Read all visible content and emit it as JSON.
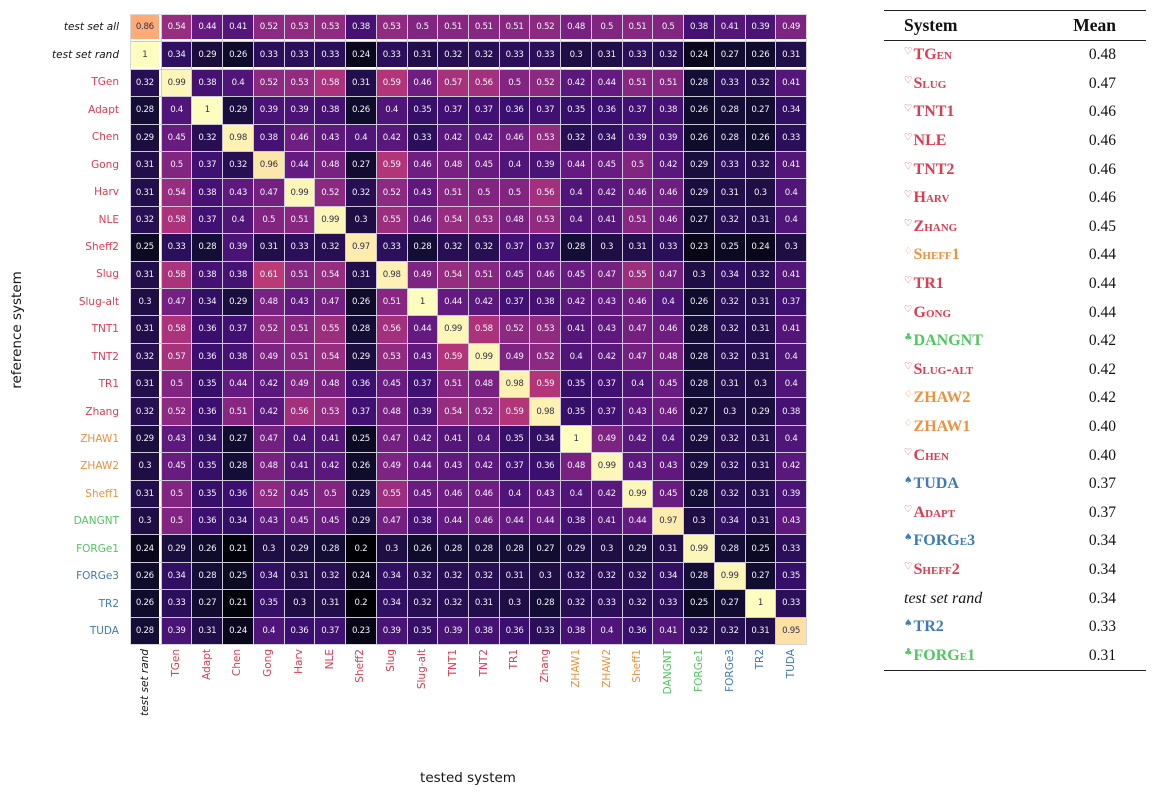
{
  "colors": {
    "red": "#e23a4e",
    "orange": "#f0903c",
    "green": "#4fc75f",
    "blue": "#3d7cb8",
    "black": "#141414"
  },
  "axes": {
    "x_title": "tested system",
    "y_title": "reference system"
  },
  "chart_data": {
    "type": "heatmap",
    "colormap": "magma",
    "value_range": [
      0.2,
      1.0
    ],
    "xlabel": "tested system",
    "ylabel": "reference system",
    "row_labels": [
      {
        "label": "test set all",
        "color": "black",
        "italic": true
      },
      {
        "label": "test set rand",
        "color": "black",
        "italic": true
      },
      {
        "label": "TGen",
        "color": "red"
      },
      {
        "label": "Adapt",
        "color": "red"
      },
      {
        "label": "Chen",
        "color": "red"
      },
      {
        "label": "Gong",
        "color": "red"
      },
      {
        "label": "Harv",
        "color": "red"
      },
      {
        "label": "NLE",
        "color": "red"
      },
      {
        "label": "Sheff2",
        "color": "red"
      },
      {
        "label": "Slug",
        "color": "red"
      },
      {
        "label": "Slug-alt",
        "color": "red"
      },
      {
        "label": "TNT1",
        "color": "red"
      },
      {
        "label": "TNT2",
        "color": "red"
      },
      {
        "label": "TR1",
        "color": "red"
      },
      {
        "label": "Zhang",
        "color": "red"
      },
      {
        "label": "ZHAW1",
        "color": "orange"
      },
      {
        "label": "ZHAW2",
        "color": "orange"
      },
      {
        "label": "Sheff1",
        "color": "orange"
      },
      {
        "label": "DANGNT",
        "color": "green"
      },
      {
        "label": "FORGe1",
        "color": "green"
      },
      {
        "label": "FORGe3",
        "color": "blue"
      },
      {
        "label": "TR2",
        "color": "blue"
      },
      {
        "label": "TUDA",
        "color": "blue"
      }
    ],
    "col_labels": [
      {
        "label": "test set rand",
        "color": "black",
        "italic": true
      },
      {
        "label": "TGen",
        "color": "red"
      },
      {
        "label": "Adapt",
        "color": "red"
      },
      {
        "label": "Chen",
        "color": "red"
      },
      {
        "label": "Gong",
        "color": "red"
      },
      {
        "label": "Harv",
        "color": "red"
      },
      {
        "label": "NLE",
        "color": "red"
      },
      {
        "label": "Sheff2",
        "color": "red"
      },
      {
        "label": "Slug",
        "color": "red"
      },
      {
        "label": "Slug-alt",
        "color": "red"
      },
      {
        "label": "TNT1",
        "color": "red"
      },
      {
        "label": "TNT2",
        "color": "red"
      },
      {
        "label": "TR1",
        "color": "red"
      },
      {
        "label": "Zhang",
        "color": "red"
      },
      {
        "label": "ZHAW1",
        "color": "orange"
      },
      {
        "label": "ZHAW2",
        "color": "orange"
      },
      {
        "label": "Sheff1",
        "color": "orange"
      },
      {
        "label": "DANGNT",
        "color": "green"
      },
      {
        "label": "FORGe1",
        "color": "green"
      },
      {
        "label": "FORGe3",
        "color": "blue"
      },
      {
        "label": "TR2",
        "color": "blue"
      },
      {
        "label": "TUDA",
        "color": "blue"
      }
    ],
    "matrix": [
      [
        0.86,
        0.54,
        0.44,
        0.41,
        0.52,
        0.53,
        0.53,
        0.38,
        0.53,
        0.5,
        0.51,
        0.51,
        0.51,
        0.52,
        0.48,
        0.5,
        0.51,
        0.5,
        0.38,
        0.41,
        0.39,
        0.49
      ],
      [
        1,
        0.34,
        0.29,
        0.26,
        0.33,
        0.33,
        0.33,
        0.24,
        0.33,
        0.31,
        0.32,
        0.32,
        0.33,
        0.33,
        0.3,
        0.31,
        0.33,
        0.32,
        0.24,
        0.27,
        0.26,
        0.31
      ],
      [
        0.32,
        0.99,
        0.38,
        0.4,
        0.52,
        0.53,
        0.58,
        0.31,
        0.59,
        0.46,
        0.57,
        0.56,
        0.5,
        0.52,
        0.42,
        0.44,
        0.51,
        0.51,
        0.28,
        0.33,
        0.32,
        0.41
      ],
      [
        0.28,
        0.4,
        1,
        0.29,
        0.39,
        0.39,
        0.38,
        0.26,
        0.4,
        0.35,
        0.37,
        0.37,
        0.36,
        0.37,
        0.35,
        0.36,
        0.37,
        0.38,
        0.26,
        0.28,
        0.27,
        0.34
      ],
      [
        0.29,
        0.45,
        0.32,
        0.98,
        0.38,
        0.46,
        0.43,
        0.4,
        0.42,
        0.33,
        0.42,
        0.42,
        0.46,
        0.53,
        0.32,
        0.34,
        0.39,
        0.39,
        0.26,
        0.28,
        0.26,
        0.33
      ],
      [
        0.31,
        0.5,
        0.37,
        0.32,
        0.96,
        0.44,
        0.48,
        0.27,
        0.59,
        0.46,
        0.48,
        0.45,
        0.4,
        0.39,
        0.44,
        0.45,
        0.5,
        0.42,
        0.29,
        0.33,
        0.32,
        0.41
      ],
      [
        0.31,
        0.54,
        0.38,
        0.43,
        0.47,
        0.99,
        0.52,
        0.32,
        0.52,
        0.43,
        0.51,
        0.5,
        0.5,
        0.56,
        0.4,
        0.42,
        0.46,
        0.46,
        0.29,
        0.31,
        0.3,
        0.4
      ],
      [
        0.32,
        0.58,
        0.37,
        0.4,
        0.5,
        0.51,
        0.99,
        0.3,
        0.55,
        0.46,
        0.54,
        0.53,
        0.48,
        0.53,
        0.4,
        0.41,
        0.51,
        0.46,
        0.27,
        0.32,
        0.31,
        0.4
      ],
      [
        0.25,
        0.33,
        0.28,
        0.39,
        0.31,
        0.33,
        0.32,
        0.97,
        0.33,
        0.28,
        0.32,
        0.32,
        0.37,
        0.37,
        0.28,
        0.3,
        0.31,
        0.33,
        0.23,
        0.25,
        0.24,
        0.3
      ],
      [
        0.31,
        0.58,
        0.38,
        0.38,
        0.61,
        0.51,
        0.54,
        0.31,
        0.98,
        0.49,
        0.54,
        0.51,
        0.45,
        0.46,
        0.45,
        0.47,
        0.55,
        0.47,
        0.3,
        0.34,
        0.32,
        0.41
      ],
      [
        0.3,
        0.47,
        0.34,
        0.29,
        0.48,
        0.43,
        0.47,
        0.26,
        0.51,
        1,
        0.44,
        0.42,
        0.37,
        0.38,
        0.42,
        0.43,
        0.46,
        0.4,
        0.26,
        0.32,
        0.31,
        0.37
      ],
      [
        0.31,
        0.58,
        0.36,
        0.37,
        0.52,
        0.51,
        0.55,
        0.28,
        0.56,
        0.44,
        0.99,
        0.58,
        0.52,
        0.53,
        0.41,
        0.43,
        0.47,
        0.46,
        0.28,
        0.32,
        0.31,
        0.41
      ],
      [
        0.32,
        0.57,
        0.36,
        0.38,
        0.49,
        0.51,
        0.54,
        0.29,
        0.53,
        0.43,
        0.59,
        0.99,
        0.49,
        0.52,
        0.4,
        0.42,
        0.47,
        0.48,
        0.28,
        0.32,
        0.31,
        0.4
      ],
      [
        0.31,
        0.5,
        0.35,
        0.44,
        0.42,
        0.49,
        0.48,
        0.36,
        0.45,
        0.37,
        0.51,
        0.48,
        0.98,
        0.59,
        0.35,
        0.37,
        0.4,
        0.45,
        0.28,
        0.31,
        0.3,
        0.4
      ],
      [
        0.32,
        0.52,
        0.36,
        0.51,
        0.42,
        0.56,
        0.53,
        0.37,
        0.48,
        0.39,
        0.54,
        0.52,
        0.59,
        0.98,
        0.35,
        0.37,
        0.43,
        0.46,
        0.27,
        0.3,
        0.29,
        0.38
      ],
      [
        0.29,
        0.43,
        0.34,
        0.27,
        0.47,
        0.4,
        0.41,
        0.25,
        0.47,
        0.42,
        0.41,
        0.4,
        0.35,
        0.34,
        1,
        0.49,
        0.42,
        0.4,
        0.29,
        0.32,
        0.31,
        0.4
      ],
      [
        0.3,
        0.45,
        0.35,
        0.28,
        0.48,
        0.41,
        0.42,
        0.26,
        0.49,
        0.44,
        0.43,
        0.42,
        0.37,
        0.36,
        0.48,
        0.99,
        0.43,
        0.43,
        0.29,
        0.32,
        0.31,
        0.42
      ],
      [
        0.31,
        0.5,
        0.35,
        0.36,
        0.52,
        0.45,
        0.5,
        0.29,
        0.55,
        0.45,
        0.46,
        0.46,
        0.4,
        0.43,
        0.4,
        0.42,
        0.99,
        0.45,
        0.28,
        0.32,
        0.31,
        0.39
      ],
      [
        0.3,
        0.5,
        0.36,
        0.34,
        0.43,
        0.45,
        0.45,
        0.29,
        0.47,
        0.38,
        0.44,
        0.46,
        0.44,
        0.44,
        0.38,
        0.41,
        0.44,
        0.97,
        0.3,
        0.34,
        0.31,
        0.43
      ],
      [
        0.24,
        0.29,
        0.26,
        0.21,
        0.3,
        0.29,
        0.28,
        0.2,
        0.3,
        0.26,
        0.28,
        0.28,
        0.28,
        0.27,
        0.29,
        0.3,
        0.29,
        0.31,
        0.99,
        0.28,
        0.25,
        0.33
      ],
      [
        0.26,
        0.34,
        0.28,
        0.25,
        0.34,
        0.31,
        0.32,
        0.24,
        0.34,
        0.32,
        0.32,
        0.32,
        0.31,
        0.3,
        0.32,
        0.32,
        0.32,
        0.34,
        0.28,
        0.99,
        0.27,
        0.35
      ],
      [
        0.26,
        0.33,
        0.27,
        0.21,
        0.35,
        0.3,
        0.31,
        0.2,
        0.34,
        0.32,
        0.32,
        0.31,
        0.3,
        0.28,
        0.32,
        0.33,
        0.32,
        0.33,
        0.25,
        0.27,
        1,
        0.33
      ],
      [
        0.28,
        0.39,
        0.31,
        0.24,
        0.4,
        0.36,
        0.37,
        0.23,
        0.39,
        0.35,
        0.39,
        0.38,
        0.36,
        0.33,
        0.38,
        0.4,
        0.36,
        0.41,
        0.32,
        0.32,
        0.31,
        0.95
      ]
    ]
  },
  "table": {
    "headers": {
      "system": "System",
      "mean": "Mean"
    },
    "rows": [
      {
        "suit": "heart",
        "name": "TGen",
        "color": "red",
        "mean": "0.48"
      },
      {
        "suit": "heart",
        "name": "Slug",
        "color": "red",
        "mean": "0.47"
      },
      {
        "suit": "heart",
        "name": "TNT1",
        "color": "red",
        "mean": "0.46"
      },
      {
        "suit": "heart",
        "name": "NLE",
        "color": "red",
        "mean": "0.46"
      },
      {
        "suit": "heart",
        "name": "TNT2",
        "color": "red",
        "mean": "0.46"
      },
      {
        "suit": "heart",
        "name": "Harv",
        "color": "red",
        "mean": "0.46"
      },
      {
        "suit": "heart",
        "name": "Zhang",
        "color": "red",
        "mean": "0.45"
      },
      {
        "suit": "diamond",
        "name": "Sheff1",
        "color": "orange",
        "mean": "0.44"
      },
      {
        "suit": "heart",
        "name": "TR1",
        "color": "red",
        "mean": "0.44"
      },
      {
        "suit": "heart",
        "name": "Gong",
        "color": "red",
        "mean": "0.44"
      },
      {
        "suit": "club",
        "name": "DANGNT",
        "color": "green",
        "mean": "0.42"
      },
      {
        "suit": "heart",
        "name": "Slug-alt",
        "color": "red",
        "mean": "0.42"
      },
      {
        "suit": "diamond",
        "name": "ZHAW2",
        "color": "orange",
        "mean": "0.42"
      },
      {
        "suit": "diamond",
        "name": "ZHAW1",
        "color": "orange",
        "mean": "0.40"
      },
      {
        "suit": "heart",
        "name": "Chen",
        "color": "red",
        "mean": "0.40"
      },
      {
        "suit": "spade",
        "name": "TUDA",
        "color": "blue",
        "mean": "0.37"
      },
      {
        "suit": "heart",
        "name": "Adapt",
        "color": "red",
        "mean": "0.37"
      },
      {
        "suit": "spade",
        "name": "FORGe3",
        "color": "blue",
        "mean": "0.34"
      },
      {
        "suit": "heart",
        "name": "Sheff2",
        "color": "red",
        "mean": "0.34"
      },
      {
        "suit": "",
        "name": "test set rand",
        "color": "black",
        "italic": true,
        "mean": "0.34"
      },
      {
        "suit": "spade",
        "name": "TR2",
        "color": "blue",
        "mean": "0.33"
      },
      {
        "suit": "club",
        "name": "FORGe1",
        "color": "green",
        "mean": "0.31"
      }
    ]
  }
}
